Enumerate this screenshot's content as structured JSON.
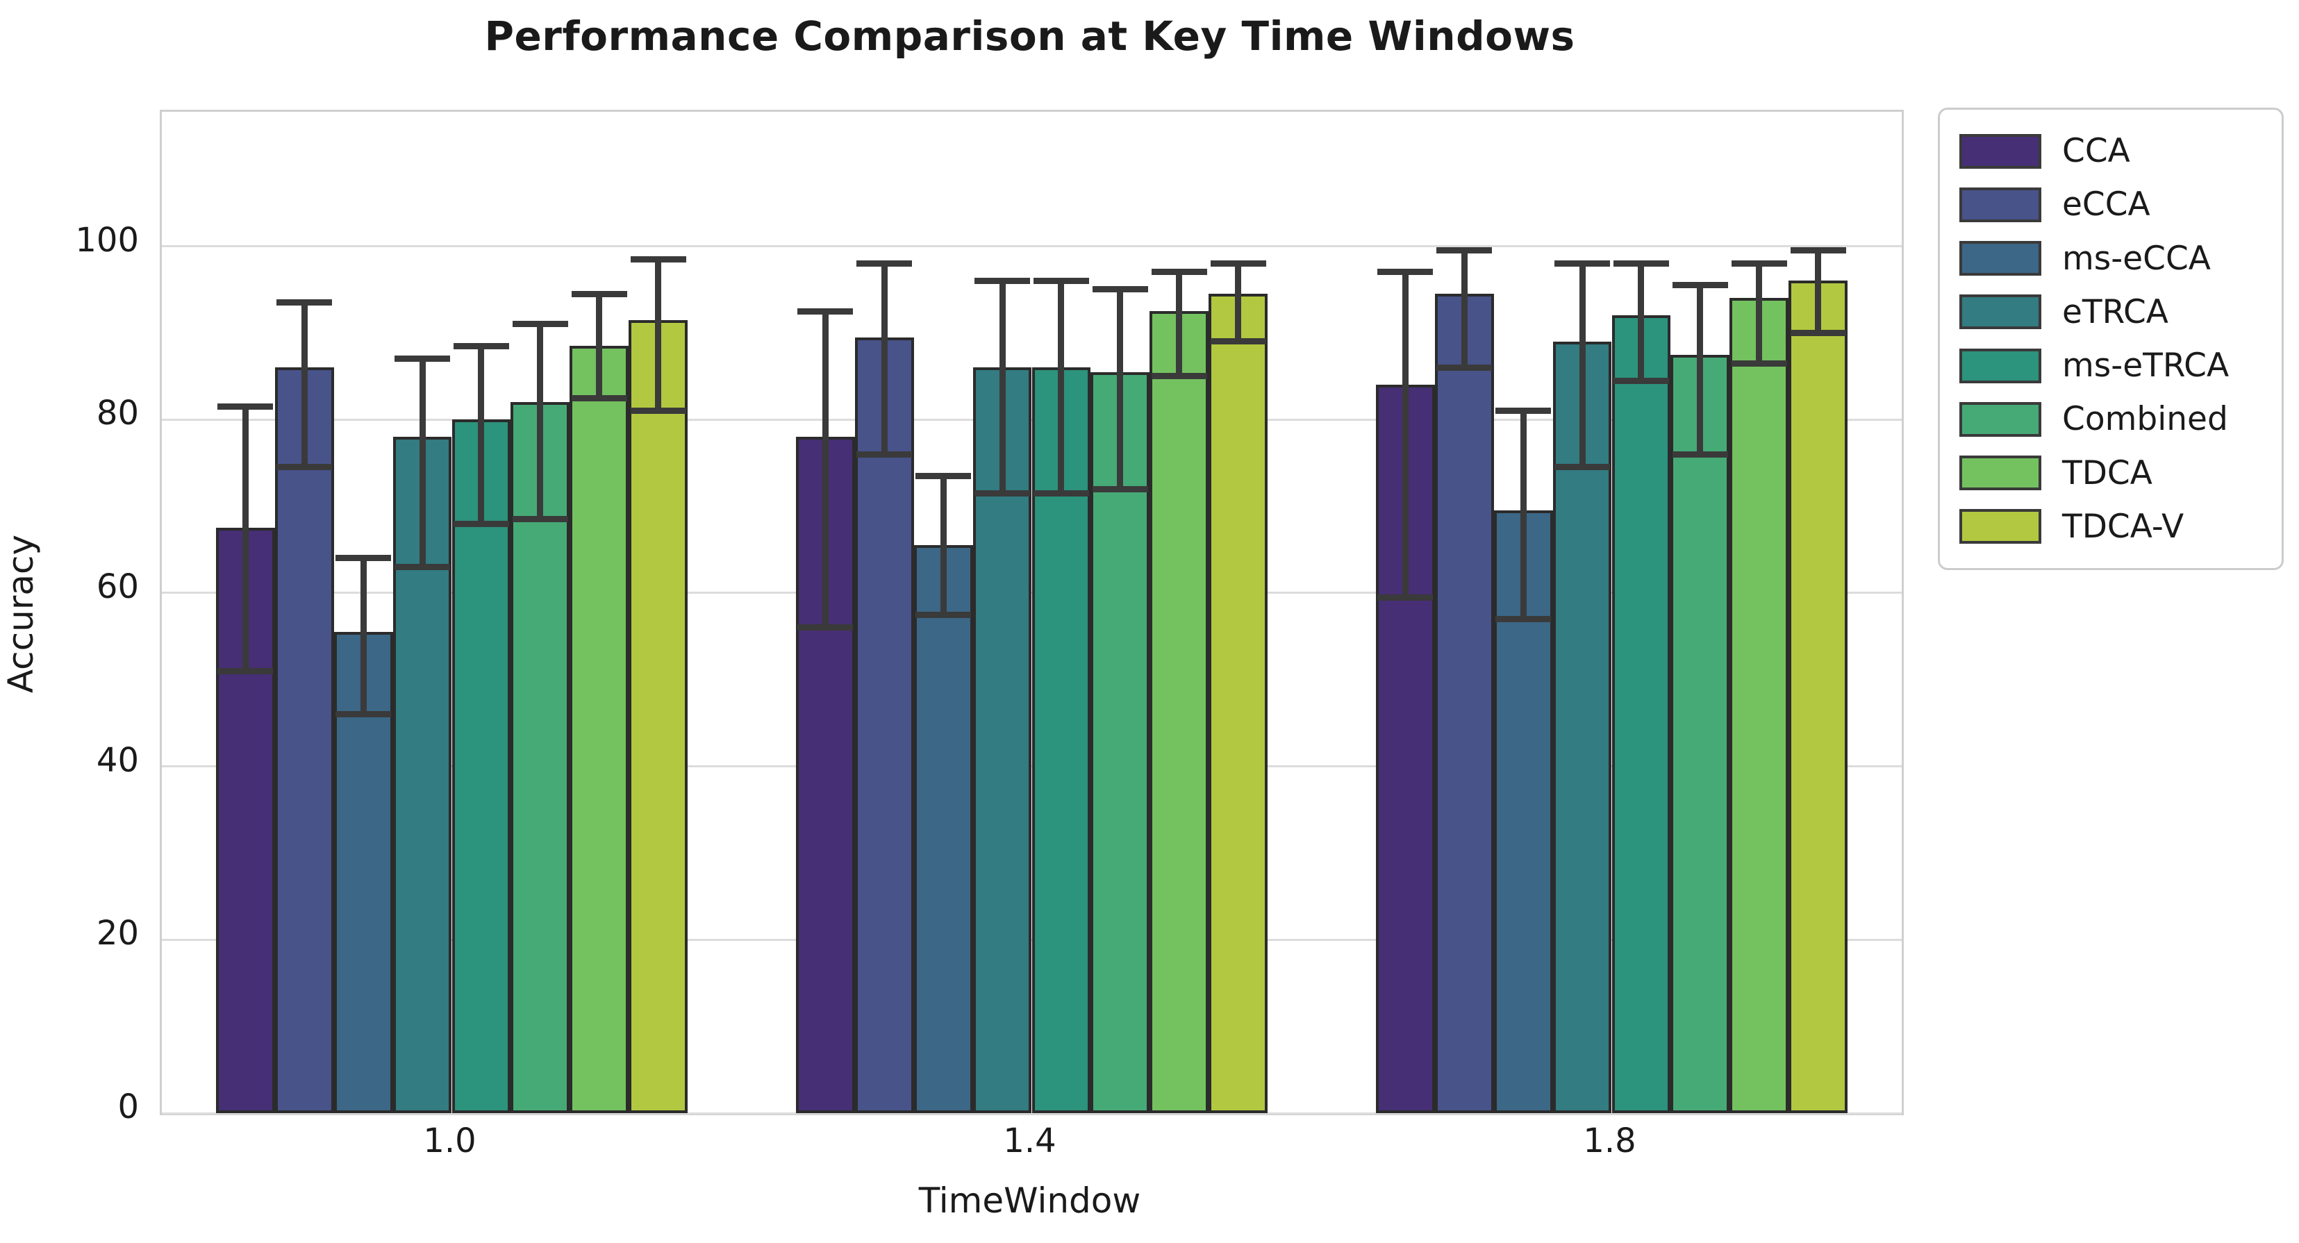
{
  "chart_data": {
    "type": "bar",
    "title": "Performance Comparison at Key Time Windows",
    "xlabel": "TimeWindow",
    "ylabel": "Accuracy",
    "categories": [
      "1.0",
      "1.4",
      "1.8"
    ],
    "yticks": [
      0,
      20,
      40,
      60,
      80,
      100
    ],
    "ylim": [
      0,
      115.5
    ],
    "grid": true,
    "legend_position": "upper-right-outside",
    "bar_edge_color": "#2b2b2b",
    "error_bar_color": "#3a3a3a",
    "series": [
      {
        "name": "CCA",
        "color": "#462f74",
        "values": [
          67.5,
          78,
          84
        ],
        "err_low": [
          51,
          56,
          59.5
        ],
        "err_high": [
          81.5,
          92.5,
          97
        ]
      },
      {
        "name": "eCCA",
        "color": "#48538a",
        "values": [
          86,
          89.5,
          94.5
        ],
        "err_low": [
          74.5,
          76,
          86
        ],
        "err_high": [
          93.5,
          98,
          99.5
        ]
      },
      {
        "name": "ms-eCCA",
        "color": "#3c6787",
        "values": [
          55.5,
          65.5,
          69.5
        ],
        "err_low": [
          46,
          57.5,
          57
        ],
        "err_high": [
          64,
          73.5,
          81
        ]
      },
      {
        "name": "eTRCA",
        "color": "#327c82",
        "values": [
          78,
          86,
          89
        ],
        "err_low": [
          63,
          71.5,
          74.5
        ],
        "err_high": [
          87,
          96,
          98
        ]
      },
      {
        "name": "ms-eTRCA",
        "color": "#2c937d",
        "values": [
          80,
          86,
          92
        ],
        "err_low": [
          68,
          71.5,
          84.5
        ],
        "err_high": [
          88.5,
          96,
          98
        ]
      },
      {
        "name": "Combined",
        "color": "#46aa77",
        "values": [
          82,
          85.5,
          87.5
        ],
        "err_low": [
          68.5,
          72,
          76
        ],
        "err_high": [
          91,
          95,
          95.5
        ]
      },
      {
        "name": "TDCA",
        "color": "#74c160",
        "values": [
          88.5,
          92.5,
          94
        ],
        "err_low": [
          82.5,
          85,
          86.5
        ],
        "err_high": [
          94.5,
          97,
          98
        ]
      },
      {
        "name": "TDCA-V",
        "color": "#b2c840",
        "values": [
          91.5,
          94.5,
          96
        ],
        "err_low": [
          81,
          89,
          90
        ],
        "err_high": [
          98.5,
          98,
          99.5
        ]
      }
    ]
  }
}
